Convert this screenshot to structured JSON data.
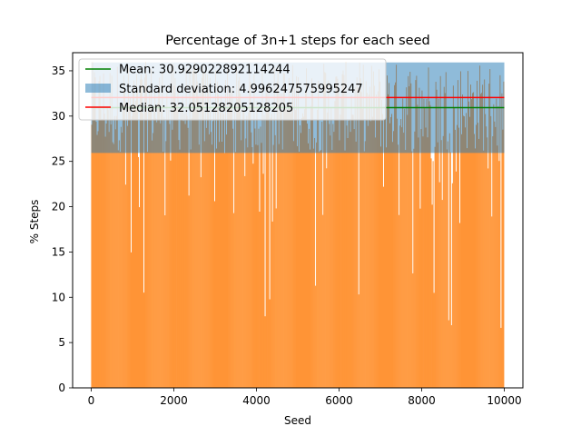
{
  "chart_data": {
    "type": "bar",
    "title": "Percentage of 3n+1 steps for each seed",
    "xlabel": "Seed",
    "ylabel": "% Steps",
    "xlim": [
      -450,
      10450
    ],
    "ylim": [
      0,
      37
    ],
    "xticks": [
      0,
      2000,
      4000,
      6000,
      8000,
      10000
    ],
    "yticks": [
      0,
      5,
      10,
      15,
      20,
      25,
      30,
      35
    ],
    "bar_color": "#ff7f0e",
    "seed_range": [
      1,
      10000
    ],
    "mean": {
      "label": "Mean: 30.929022892114244",
      "value": 30.929022892114244,
      "color": "#008000"
    },
    "std": {
      "label": "Standard deviation: 4.996247575995247",
      "value": 4.996247575995247,
      "color": "#1f77b4"
    },
    "median": {
      "label": "Median: 32.05128205128205",
      "value": 32.05128205128205,
      "color": "#ff0000"
    },
    "legend_position": "upper-left",
    "grid": false
  }
}
